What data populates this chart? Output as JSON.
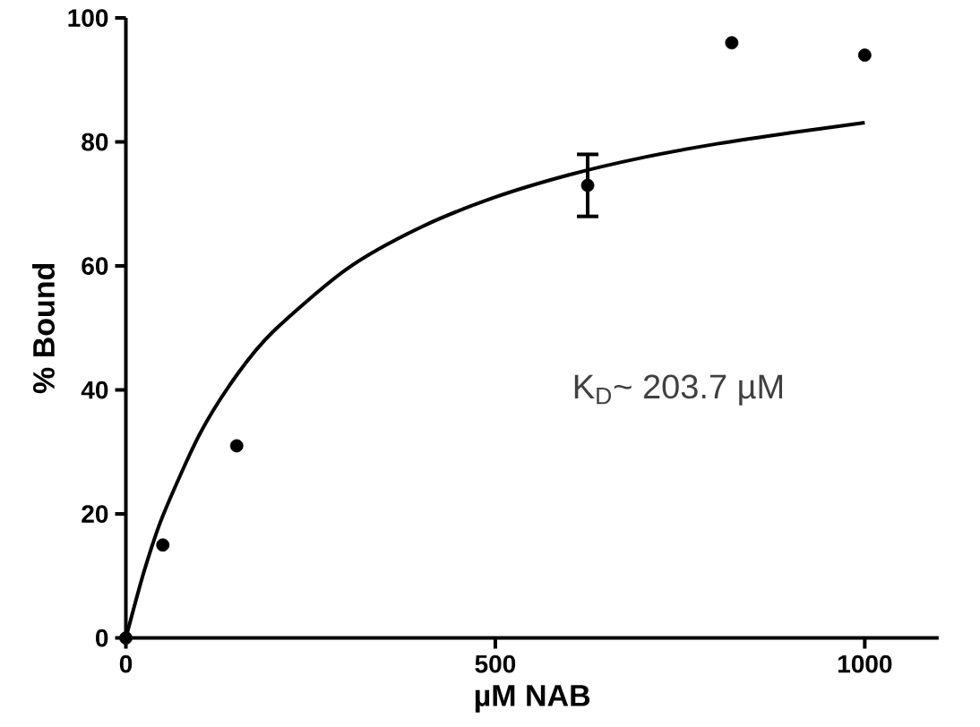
{
  "chart_data": {
    "type": "scatter",
    "xlabel": "µM NAB",
    "ylabel": "% Bound",
    "xlim": [
      0,
      1100
    ],
    "ylim": [
      0,
      100
    ],
    "xticks": [
      0,
      500,
      1000
    ],
    "yticks": [
      0,
      20,
      40,
      60,
      80,
      100
    ],
    "grid": false,
    "series": [
      {
        "color": "#000000",
        "marker": "circle",
        "x": [
          0,
          50,
          150,
          625,
          820,
          1000
        ],
        "values": [
          0,
          15,
          31,
          73,
          96,
          94
        ],
        "errors": [
          null,
          null,
          null,
          5,
          null,
          null
        ]
      },
      {
        "type": "line",
        "color": "#000000",
        "marker": "none",
        "line_style": "solid",
        "x": [
          0,
          25,
          50,
          100,
          150,
          200,
          300,
          400,
          500,
          600,
          700,
          800,
          900,
          1000
        ],
        "values": [
          0,
          10.9,
          19.7,
          32.9,
          42.4,
          49.5,
          59.6,
          66.3,
          71.1,
          74.7,
          77.5,
          79.7,
          81.5,
          83.1
        ]
      }
    ],
    "annotations": [
      "K$_{D}$~ 203.7 µM"
    ]
  }
}
